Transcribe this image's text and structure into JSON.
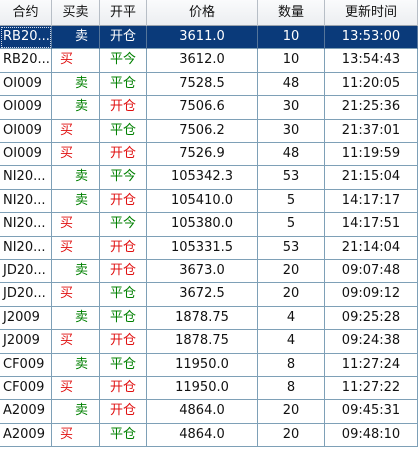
{
  "table": {
    "headers": [
      "合约",
      "买卖",
      "开平",
      "价格",
      "数量",
      "更新时间"
    ],
    "rows": [
      {
        "contract": "RB20...",
        "side": "卖",
        "side_type": "sell",
        "offset": "开仓",
        "offset_type": "open",
        "price": "3611.0",
        "qty": "10",
        "time": "13:53:00",
        "selected": true
      },
      {
        "contract": "RB20...",
        "side": "买",
        "side_type": "buy",
        "offset": "平今",
        "offset_type": "close",
        "price": "3612.0",
        "qty": "10",
        "time": "13:54:43"
      },
      {
        "contract": "OI009",
        "side": "卖",
        "side_type": "sell",
        "offset": "平仓",
        "offset_type": "close",
        "price": "7528.5",
        "qty": "48",
        "time": "11:20:05"
      },
      {
        "contract": "OI009",
        "side": "卖",
        "side_type": "sell",
        "offset": "开仓",
        "offset_type": "open",
        "price": "7506.6",
        "qty": "30",
        "time": "21:25:36"
      },
      {
        "contract": "OI009",
        "side": "买",
        "side_type": "buy",
        "offset": "平仓",
        "offset_type": "close",
        "price": "7506.2",
        "qty": "30",
        "time": "21:37:01"
      },
      {
        "contract": "OI009",
        "side": "买",
        "side_type": "buy",
        "offset": "开仓",
        "offset_type": "open",
        "price": "7526.9",
        "qty": "48",
        "time": "11:19:59"
      },
      {
        "contract": "NI20...",
        "side": "卖",
        "side_type": "sell",
        "offset": "平今",
        "offset_type": "close",
        "price": "105342.3",
        "qty": "53",
        "time": "21:15:04"
      },
      {
        "contract": "NI20...",
        "side": "卖",
        "side_type": "sell",
        "offset": "开仓",
        "offset_type": "open",
        "price": "105410.0",
        "qty": "5",
        "time": "14:17:17"
      },
      {
        "contract": "NI20...",
        "side": "买",
        "side_type": "buy",
        "offset": "平今",
        "offset_type": "close",
        "price": "105380.0",
        "qty": "5",
        "time": "14:17:51"
      },
      {
        "contract": "NI20...",
        "side": "买",
        "side_type": "buy",
        "offset": "开仓",
        "offset_type": "open",
        "price": "105331.5",
        "qty": "53",
        "time": "21:14:04"
      },
      {
        "contract": "JD20...",
        "side": "卖",
        "side_type": "sell",
        "offset": "开仓",
        "offset_type": "open",
        "price": "3673.0",
        "qty": "20",
        "time": "09:07:48"
      },
      {
        "contract": "JD20...",
        "side": "买",
        "side_type": "buy",
        "offset": "平仓",
        "offset_type": "close",
        "price": "3672.5",
        "qty": "20",
        "time": "09:09:12"
      },
      {
        "contract": "J2009",
        "side": "卖",
        "side_type": "sell",
        "offset": "平仓",
        "offset_type": "close",
        "price": "1878.75",
        "qty": "4",
        "time": "09:25:28"
      },
      {
        "contract": "J2009",
        "side": "买",
        "side_type": "buy",
        "offset": "开仓",
        "offset_type": "open",
        "price": "1878.75",
        "qty": "4",
        "time": "09:24:38"
      },
      {
        "contract": "CF009",
        "side": "卖",
        "side_type": "sell",
        "offset": "平仓",
        "offset_type": "close",
        "price": "11950.0",
        "qty": "8",
        "time": "11:27:24"
      },
      {
        "contract": "CF009",
        "side": "买",
        "side_type": "buy",
        "offset": "开仓",
        "offset_type": "open",
        "price": "11950.0",
        "qty": "8",
        "time": "11:27:22"
      },
      {
        "contract": "A2009",
        "side": "卖",
        "side_type": "sell",
        "offset": "开仓",
        "offset_type": "open",
        "price": "4864.0",
        "qty": "20",
        "time": "09:45:31"
      },
      {
        "contract": "A2009",
        "side": "买",
        "side_type": "buy",
        "offset": "平仓",
        "offset_type": "close",
        "price": "4864.0",
        "qty": "20",
        "time": "09:48:10"
      }
    ]
  },
  "colors": {
    "buy": "#e01010",
    "sell": "#008000",
    "selected_row": "#0a3a7a",
    "grid_line": "#7ea0b7"
  }
}
